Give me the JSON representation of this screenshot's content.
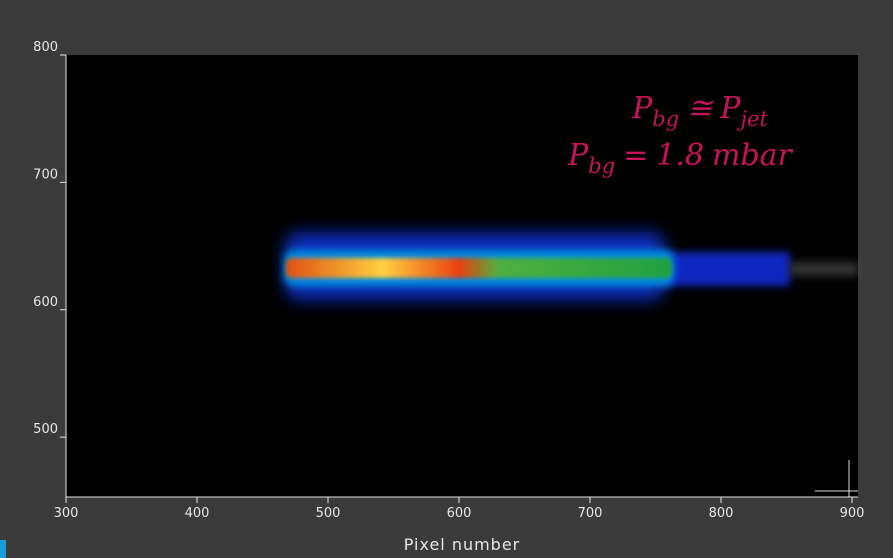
{
  "chart_data": {
    "type": "image",
    "x_label": "Pixel number",
    "xlim": [
      300,
      900
    ],
    "xticks": [
      300,
      400,
      500,
      600,
      700,
      800,
      900
    ],
    "ylim": [
      453,
      800
    ],
    "yticks": [
      500,
      600,
      700,
      800
    ],
    "annotations": [
      [
        "P",
        "bg",
        "≅",
        "P",
        "jet"
      ],
      [
        "P",
        "bg",
        "=",
        "1.8",
        "mbar"
      ]
    ],
    "annotation_color": "#c8125c"
  }
}
